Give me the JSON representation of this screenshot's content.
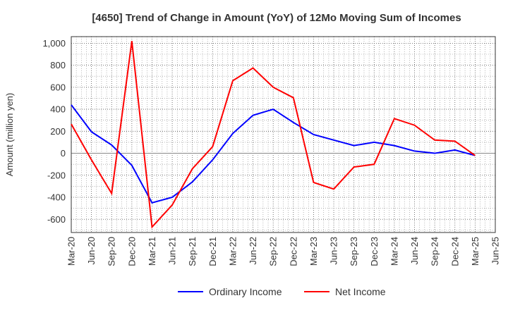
{
  "chart_data": {
    "type": "line",
    "title": "[4650]  Trend of Change in Amount (YoY) of 12Mo Moving Sum of Incomes",
    "xlabel": "",
    "ylabel": "Amount (million yen)",
    "ylim": [
      -720,
      1060
    ],
    "yticks": [
      -600,
      -400,
      -200,
      0,
      200,
      400,
      600,
      800,
      1000
    ],
    "ytick_labels": [
      "-600",
      "-400",
      "-200",
      "0",
      "200",
      "400",
      "600",
      "800",
      "1,000"
    ],
    "x_tick_labels": [
      "Mar-20",
      "Jun-20",
      "Sep-20",
      "Dec-20",
      "Mar-21",
      "Jun-21",
      "Sep-21",
      "Dec-21",
      "Mar-22",
      "Jun-22",
      "Sep-22",
      "Dec-22",
      "Mar-23",
      "Jun-23",
      "Sep-23",
      "Dec-23",
      "Mar-24",
      "Jun-24",
      "Sep-24",
      "Dec-24",
      "Mar-25",
      "Jun-25"
    ],
    "grid": true,
    "legend_position": "bottom-center",
    "series": [
      {
        "name": "Ordinary Income",
        "color": "#0000ff",
        "values": [
          440,
          195,
          75,
          -110,
          -450,
          -400,
          -260,
          -60,
          180,
          345,
          400,
          280,
          170,
          120,
          70,
          100,
          70,
          20,
          0,
          30,
          -20
        ]
      },
      {
        "name": "Net Income",
        "color": "#ff0000",
        "values": [
          265,
          -60,
          -365,
          1020,
          -670,
          -470,
          -140,
          60,
          660,
          775,
          600,
          505,
          -265,
          -325,
          -125,
          -100,
          315,
          255,
          120,
          110,
          -20
        ]
      }
    ]
  }
}
